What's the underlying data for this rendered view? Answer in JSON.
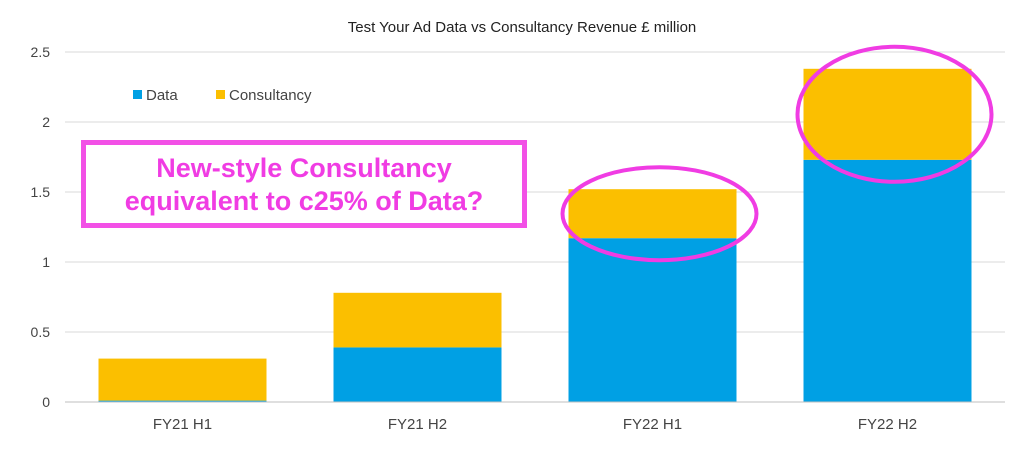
{
  "chart_data": {
    "type": "bar",
    "stacked": true,
    "title": "Test Your Ad Data vs Consultancy Revenue £ million",
    "xlabel": "",
    "ylabel": "",
    "categories": [
      "FY21 H1",
      "FY21 H2",
      "FY22 H1",
      "FY22 H2"
    ],
    "series": [
      {
        "name": "Data",
        "values": [
          0.01,
          0.39,
          1.17,
          1.73
        ],
        "color": "#00a0e4"
      },
      {
        "name": "Consultancy",
        "values": [
          0.3,
          0.39,
          0.35,
          0.65
        ],
        "color": "#fbbf00"
      }
    ],
    "ylim": [
      0,
      2.5
    ],
    "yticks": [
      "0",
      "0.5",
      "1",
      "1.5",
      "2",
      "2.5"
    ],
    "grid": true,
    "legend": "top-left",
    "annotation": {
      "lines": [
        "New-style Consultancy",
        "equivalent to c25% of Data?"
      ],
      "color": "#f03ce3",
      "highlighted_categories": [
        "FY22 H1",
        "FY22 H2"
      ]
    }
  }
}
